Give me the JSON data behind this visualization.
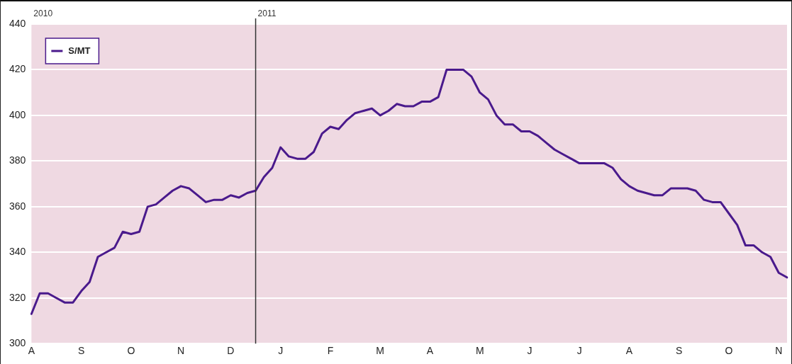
{
  "chart_data": {
    "type": "line",
    "categories": [
      "A",
      null,
      null,
      null,
      null,
      null,
      "S",
      null,
      null,
      null,
      null,
      null,
      "O",
      null,
      null,
      null,
      null,
      null,
      "N",
      null,
      null,
      null,
      null,
      null,
      "D",
      null,
      null,
      null,
      null,
      null,
      "J",
      null,
      null,
      null,
      null,
      null,
      "F",
      null,
      null,
      null,
      null,
      null,
      "M",
      null,
      null,
      null,
      null,
      null,
      "A",
      null,
      null,
      null,
      null,
      null,
      "M",
      null,
      null,
      null,
      null,
      null,
      "J",
      null,
      null,
      null,
      null,
      null,
      "J",
      null,
      null,
      null,
      null,
      null,
      "A",
      null,
      null,
      null,
      null,
      null,
      "S",
      null,
      null,
      null,
      null,
      null,
      "O",
      null,
      null,
      null,
      null,
      null,
      "N",
      null
    ],
    "series": [
      {
        "name": "S/MT",
        "color": "#4a1a8c",
        "values": [
          313,
          322,
          322,
          320,
          318,
          318,
          323,
          327,
          338,
          340,
          342,
          349,
          348,
          349,
          360,
          361,
          364,
          367,
          369,
          368,
          365,
          362,
          363,
          363,
          365,
          364,
          366,
          367,
          373,
          377,
          386,
          382,
          381,
          381,
          384,
          392,
          395,
          394,
          398,
          401,
          402,
          403,
          400,
          402,
          405,
          404,
          404,
          406,
          406,
          408,
          420,
          420,
          420,
          417,
          410,
          407,
          400,
          396,
          396,
          393,
          393,
          391,
          388,
          385,
          383,
          381,
          379,
          379,
          379,
          379,
          377,
          372,
          369,
          367,
          366,
          365,
          365,
          368,
          368,
          368,
          367,
          363,
          362,
          362,
          357,
          352,
          343,
          343,
          340,
          338,
          331,
          329
        ]
      }
    ],
    "ylim": [
      300,
      440
    ],
    "yticks": [
      300,
      320,
      340,
      360,
      380,
      400,
      420,
      440
    ],
    "grid": "y",
    "legend": "top left",
    "line_style": "solid",
    "annotations": [
      "2010",
      "2011"
    ]
  }
}
